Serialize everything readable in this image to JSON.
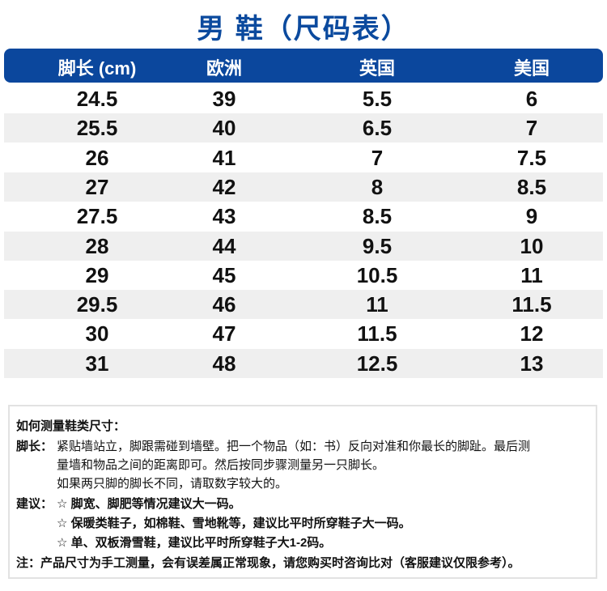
{
  "title": "男 鞋（尺码表）",
  "header_color": "#0b479d",
  "columns": [
    "脚长 (cm)",
    "欧洲",
    "英国",
    "美国"
  ],
  "rows": [
    [
      "24.5",
      "39",
      "5.5",
      "6"
    ],
    [
      "25.5",
      "40",
      "6.5",
      "7"
    ],
    [
      "26",
      "41",
      "7",
      "7.5"
    ],
    [
      "27",
      "42",
      "8",
      "8.5"
    ],
    [
      "27.5",
      "43",
      "8.5",
      "9"
    ],
    [
      "28",
      "44",
      "9.5",
      "10"
    ],
    [
      "29",
      "45",
      "10.5",
      "11"
    ],
    [
      "29.5",
      "46",
      "11",
      "11.5"
    ],
    [
      "30",
      "47",
      "11.5",
      "12"
    ],
    [
      "31",
      "48",
      "12.5",
      "13"
    ]
  ],
  "notes": {
    "heading": "如何测量鞋类尺寸：",
    "foot_label": "脚长：",
    "foot_lines": [
      "紧贴墙站立，脚跟需碰到墙壁。把一个物品（如：书）反向对准和你最长的脚趾。最后测",
      "量墙和物品之间的距离即可。然后按同步骤测量另一只脚长。",
      "如果两只脚的脚长不同，请取数字较大的。"
    ],
    "advice_label": "建议：",
    "advice_lines": [
      "☆  脚宽、脚肥等情况建议大一码。",
      "☆  保暖类鞋子，如棉鞋、雪地靴等，建议比平时所穿鞋子大一码。",
      "☆  单、双板滑雪鞋，建议比平时所穿鞋子大1-2码。"
    ],
    "footnote": "注：产品尺寸为手工测量，会有误差属正常现象，请您购买时咨询比对（客服建议仅限参考）。"
  }
}
